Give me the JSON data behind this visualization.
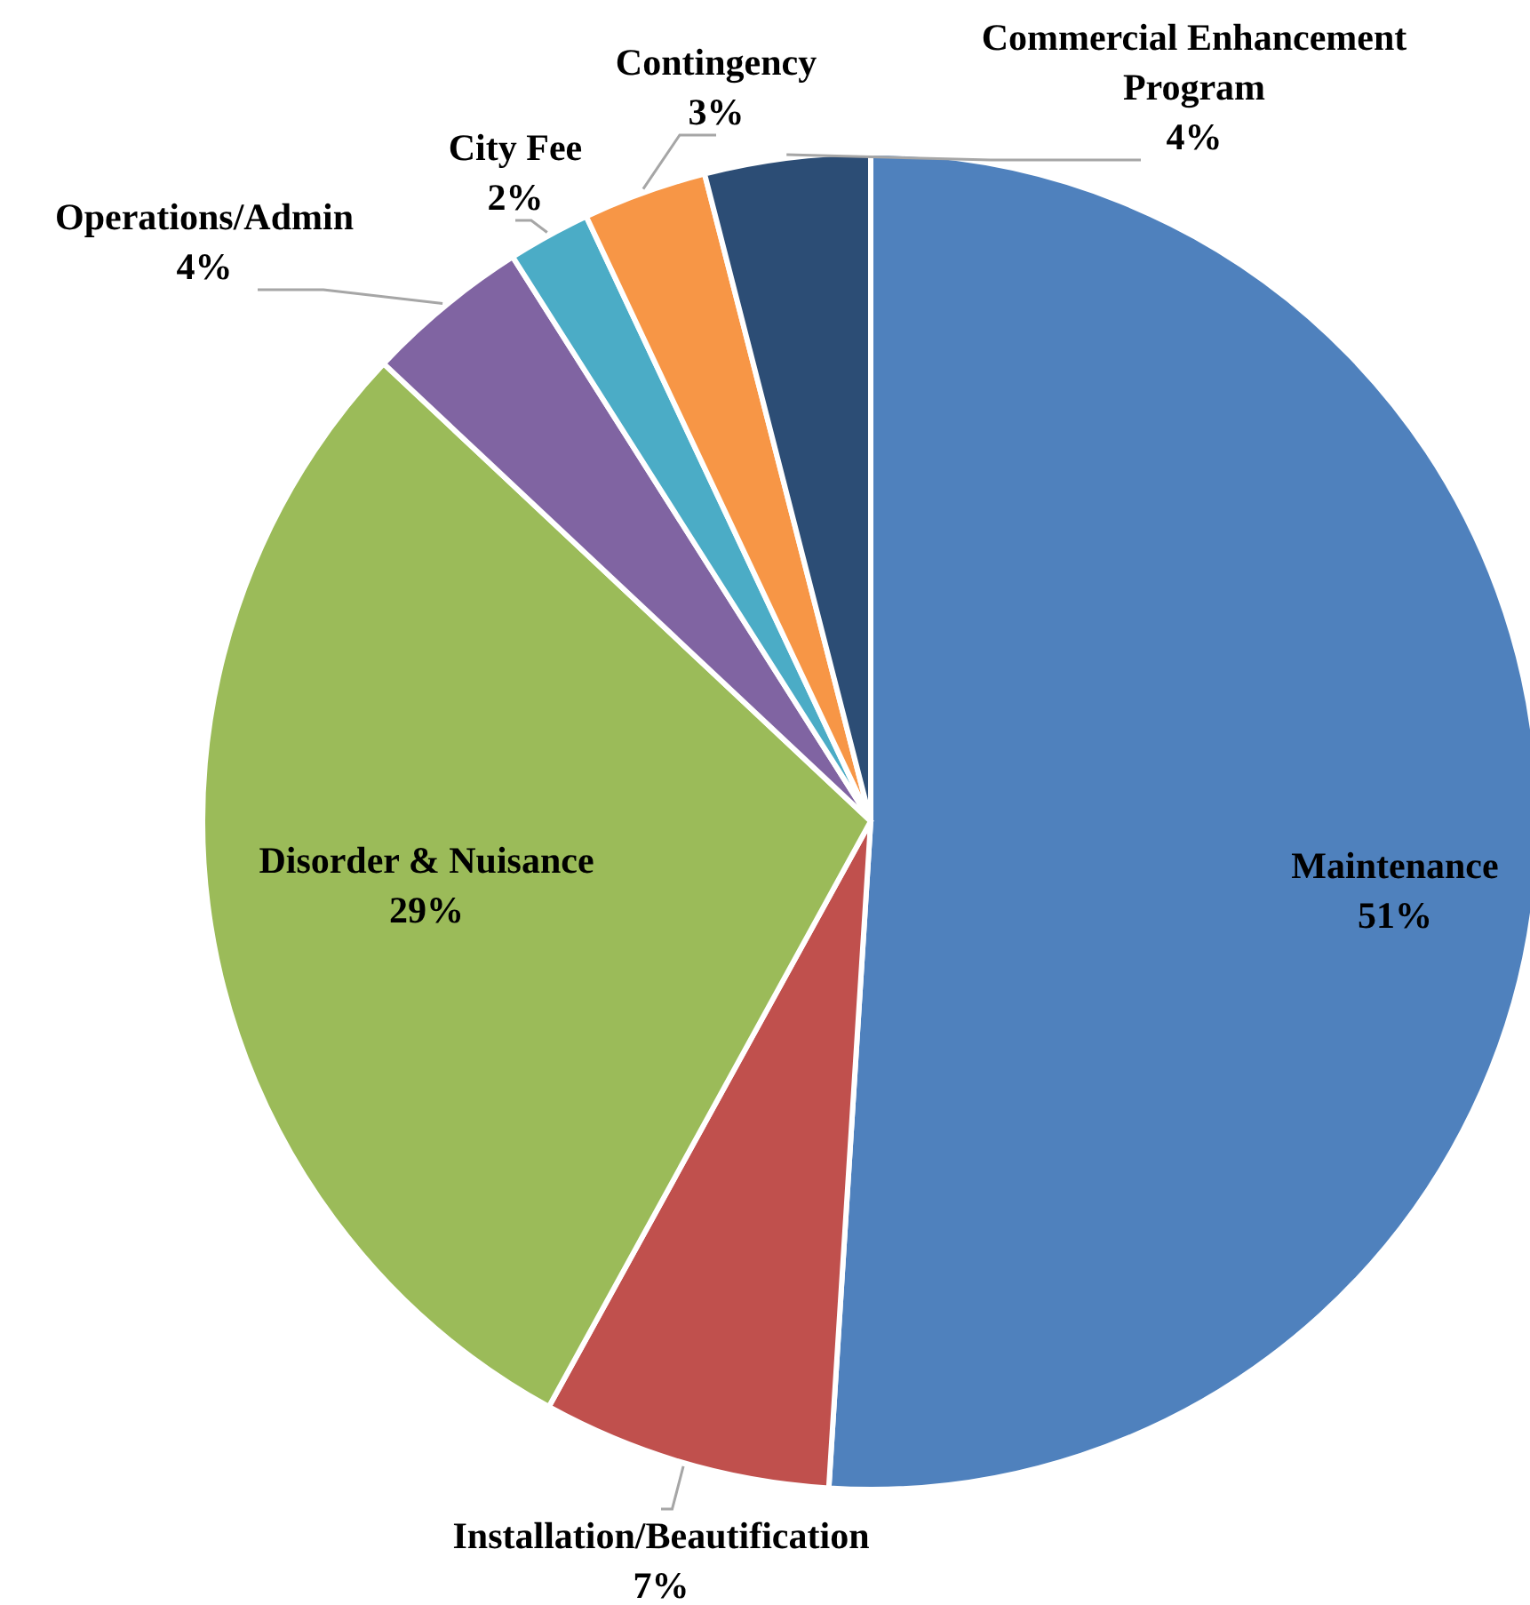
{
  "chart_data": {
    "type": "pie",
    "categories": [
      "Maintenance",
      "Installation/Beautification",
      "Disorder & Nuisance",
      "Operations/Admin",
      "City Fee",
      "Contingency",
      "Commercial Enhancement Program"
    ],
    "values": [
      51,
      7,
      29,
      4,
      2,
      3,
      4
    ],
    "value_labels": [
      "51%",
      "7%",
      "29%",
      "4%",
      "2%",
      "3%",
      "4%"
    ],
    "colors": [
      "#4f81bd",
      "#c0504d",
      "#9bbb59",
      "#8064a2",
      "#4bacc6",
      "#f79646",
      "#2c4d75"
    ],
    "legend": false
  }
}
